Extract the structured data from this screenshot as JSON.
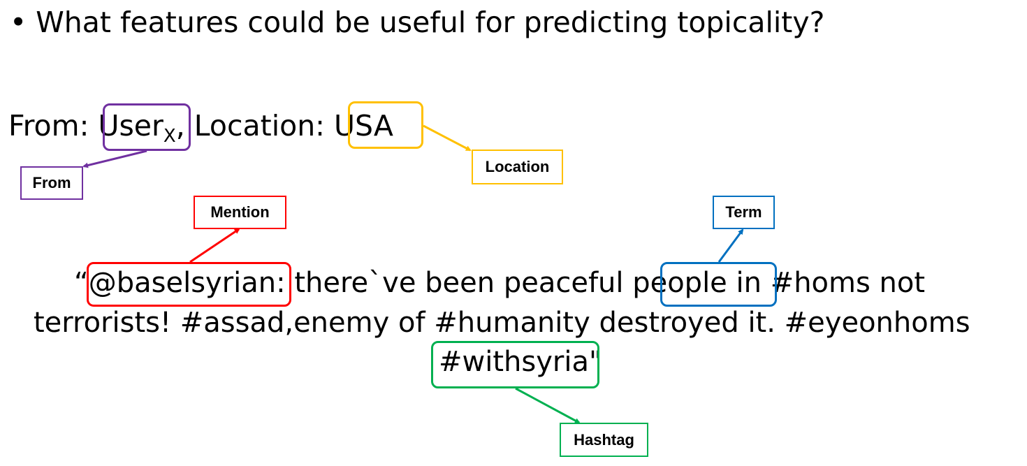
{
  "question": {
    "bullet": "•",
    "text": "What features could be useful for predicting topicality?"
  },
  "meta": {
    "from_label": "From: ",
    "user": "User",
    "user_sub": "X",
    "location_label": ", Location: ",
    "location_value": "USA"
  },
  "tweet": {
    "open_quote": "“",
    "mention": "@baselsyrian",
    "after_mention": ": there`ve been peaceful ",
    "term": "people",
    "after_term": " in #homs not",
    "line2": "terrorists! #assad,enemy of #humanity destroyed it. #eyeonhoms",
    "hashtag": "#withsyria",
    "close_quote": "\""
  },
  "tags": {
    "from": "From",
    "location": "Location",
    "mention": "Mention",
    "term": "Term",
    "hashtag": "Hashtag"
  },
  "colors": {
    "from": "#7030a0",
    "location": "#ffc000",
    "mention": "#ff0000",
    "term": "#0070c0",
    "hashtag": "#00b050"
  }
}
